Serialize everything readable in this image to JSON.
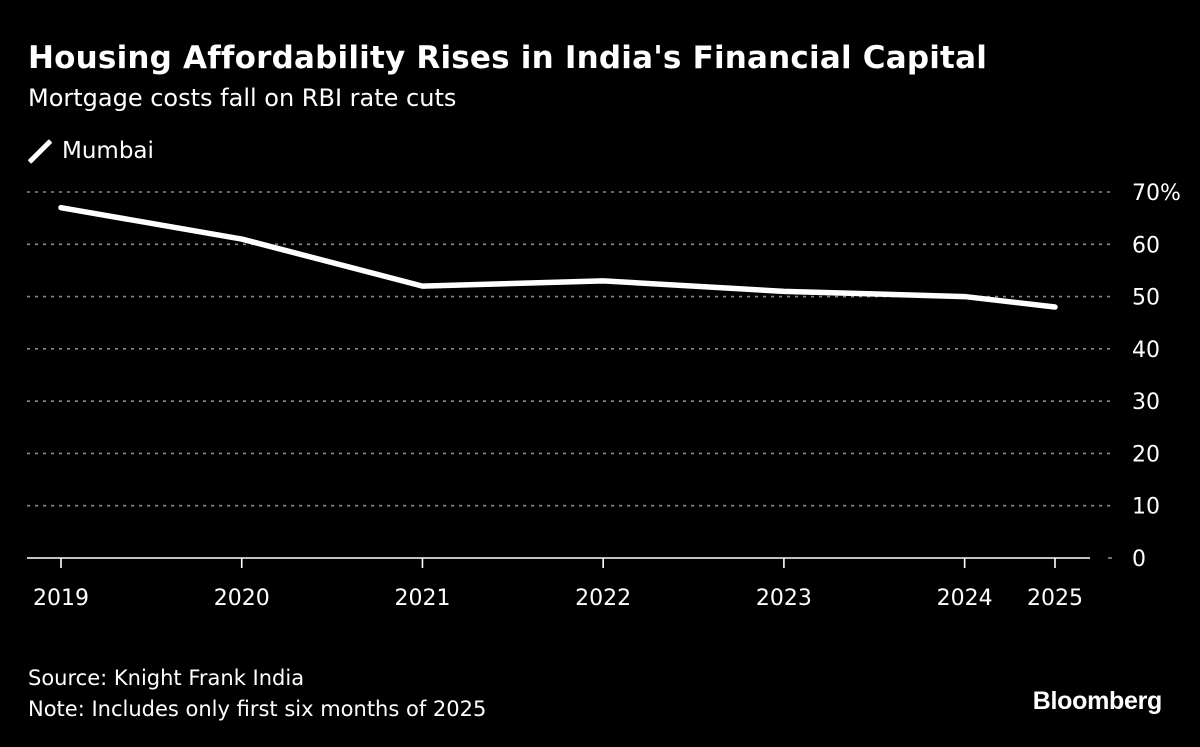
{
  "header": {
    "title": "Housing Affordability Rises in India's Financial Capital",
    "subtitle": "Mortgage costs fall on RBI rate cuts"
  },
  "legend": {
    "items": [
      {
        "label": "Mumbai",
        "color": "#ffffff",
        "icon": "line-swatch-icon"
      }
    ]
  },
  "footer": {
    "source": "Source: Knight Frank India",
    "note": "Note: Includes only first six months of 2025",
    "brand": "Bloomberg"
  },
  "colors": {
    "background": "#000000",
    "line": "#ffffff",
    "grid": "#8a8a8a",
    "text": "#ffffff"
  },
  "chart_data": {
    "type": "line",
    "title": "Housing Affordability Rises in India's Financial Capital",
    "subtitle": "Mortgage costs fall on RBI rate cuts",
    "xlabel": "",
    "ylabel": "",
    "categories": [
      "2019",
      "2020",
      "2021",
      "2022",
      "2023",
      "2024",
      "2025"
    ],
    "x": [
      2019,
      2020,
      2021,
      2022,
      2023,
      2024,
      2024.5
    ],
    "series": [
      {
        "name": "Mumbai",
        "values": [
          67,
          61,
          52,
          53,
          51,
          50,
          48
        ]
      }
    ],
    "ylim": [
      0,
      70
    ],
    "y_ticks": [
      0,
      10,
      20,
      30,
      40,
      50,
      60,
      70
    ],
    "y_tick_labels": [
      "0",
      "10",
      "20",
      "30",
      "40",
      "50",
      "60",
      "70%"
    ],
    "y_axis_side": "right",
    "grid": true,
    "grid_style": "dotted",
    "legend_position": "top-left",
    "source": "Knight Frank India",
    "note": "Includes only first six months of 2025"
  }
}
